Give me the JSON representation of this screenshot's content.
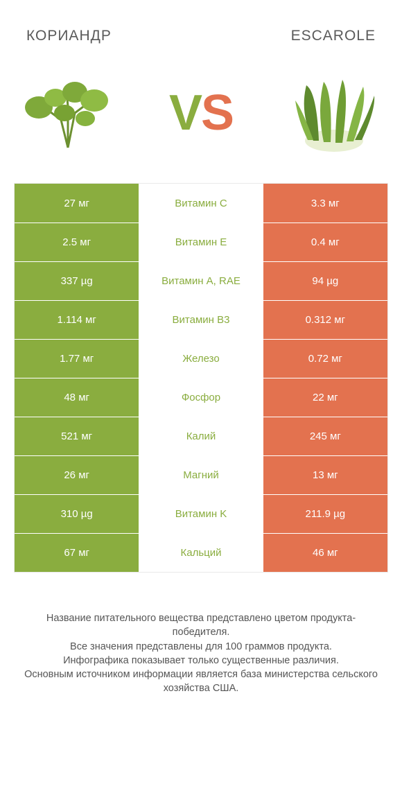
{
  "header": {
    "left_title": "КОРИАНДР",
    "right_title": "ESCAROLE"
  },
  "vs": {
    "v": "V",
    "s": "S"
  },
  "colors": {
    "left_win": "#8aad3f",
    "right_win": "#e3724f",
    "mid_text_left": "#8aad3f",
    "mid_text_right": "#e3724f",
    "neutral_text": "#555555"
  },
  "rows": [
    {
      "label": "Витамин C",
      "left": "27 мг",
      "right": "3.3 мг",
      "winner": "left"
    },
    {
      "label": "Витамин E",
      "left": "2.5 мг",
      "right": "0.4 мг",
      "winner": "left"
    },
    {
      "label": "Витамин A, RAE",
      "left": "337 µg",
      "right": "94 µg",
      "winner": "left"
    },
    {
      "label": "Витамин B3",
      "left": "1.114 мг",
      "right": "0.312 мг",
      "winner": "left"
    },
    {
      "label": "Железо",
      "left": "1.77 мг",
      "right": "0.72 мг",
      "winner": "left"
    },
    {
      "label": "Фосфор",
      "left": "48 мг",
      "right": "22 мг",
      "winner": "left"
    },
    {
      "label": "Калий",
      "left": "521 мг",
      "right": "245 мг",
      "winner": "left"
    },
    {
      "label": "Магний",
      "left": "26 мг",
      "right": "13 мг",
      "winner": "left"
    },
    {
      "label": "Витамин K",
      "left": "310 µg",
      "right": "211.9 µg",
      "winner": "left"
    },
    {
      "label": "Кальций",
      "left": "67 мг",
      "right": "46 мг",
      "winner": "left"
    }
  ],
  "footnote": "Название питательного вещества представлено цветом продукта-победителя.\nВсе значения представлены для 100 граммов продукта.\nИнфографика показывает только существенные различия.\nОсновным источником информации является база министерства сельского хозяйства США."
}
